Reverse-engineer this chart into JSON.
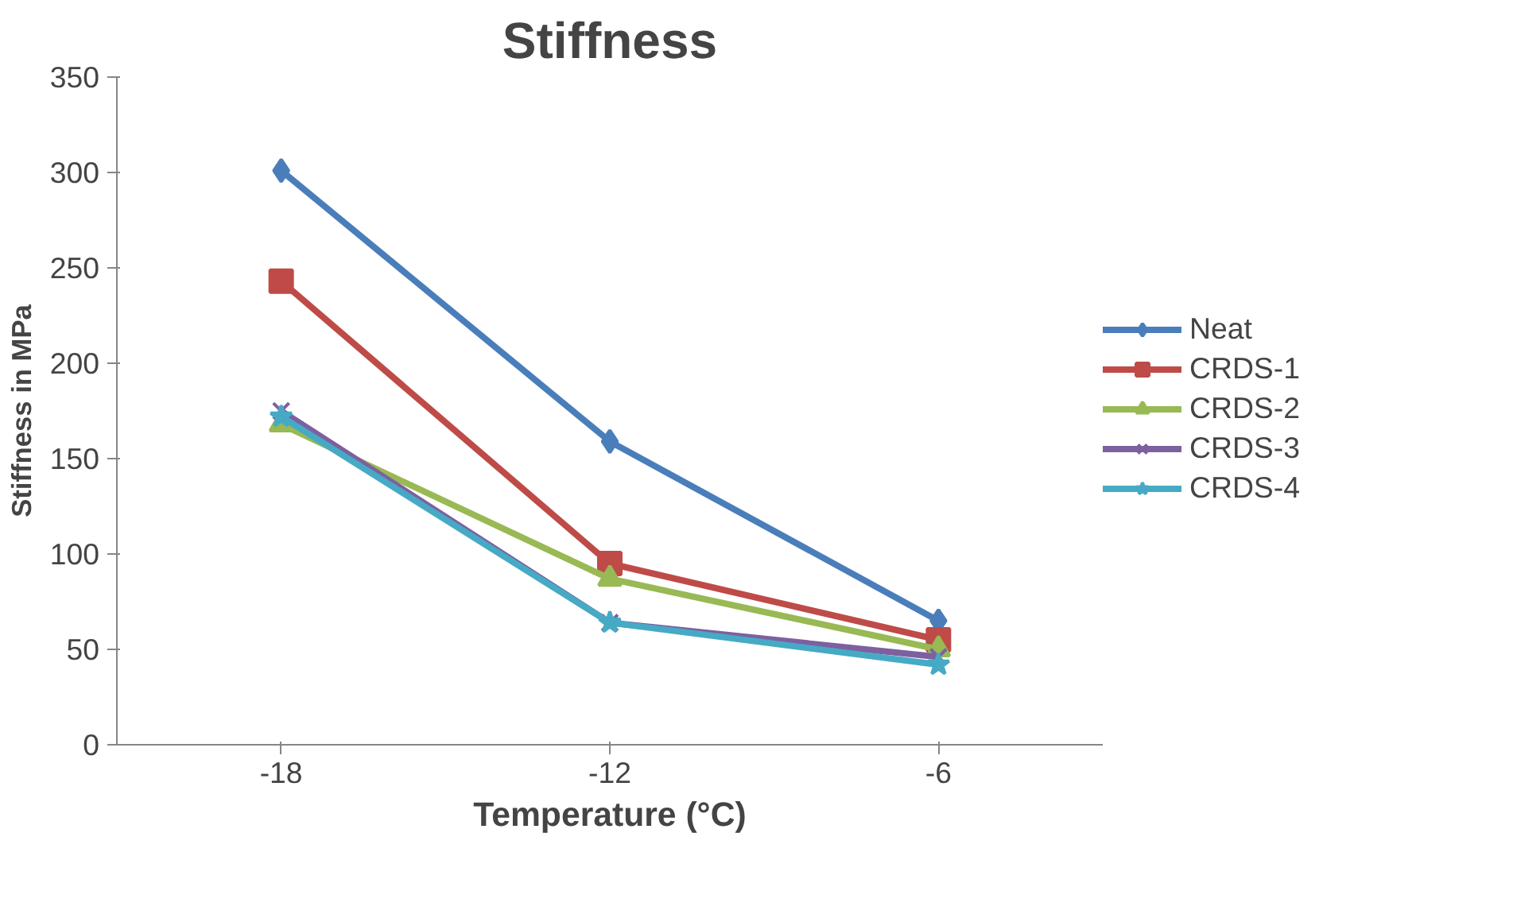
{
  "chart_data": {
    "type": "line",
    "title": "Stiffness",
    "xlabel": "Temperature (°C)",
    "ylabel": "Stiffness in MPa",
    "categories": [
      "-18",
      "-12",
      "-6"
    ],
    "ylim": [
      0,
      350
    ],
    "yticks": [
      0,
      50,
      100,
      150,
      200,
      250,
      300,
      350
    ],
    "grid": false,
    "legend": "right",
    "line_style": "solid",
    "series": [
      {
        "name": "Neat",
        "color": "#4a7ebb",
        "marker": "diamond",
        "values": [
          301,
          159,
          65
        ]
      },
      {
        "name": "CRDS-1",
        "color": "#be4b48",
        "marker": "square",
        "values": [
          243,
          95,
          55
        ]
      },
      {
        "name": "CRDS-2",
        "color": "#98b954",
        "marker": "triangle",
        "values": [
          168,
          87,
          50
        ]
      },
      {
        "name": "CRDS-3",
        "color": "#7d60a0",
        "marker": "cross",
        "values": [
          175,
          64,
          46
        ]
      },
      {
        "name": "CRDS-4",
        "color": "#46aac5",
        "marker": "star",
        "values": [
          172,
          64,
          42
        ]
      }
    ]
  }
}
